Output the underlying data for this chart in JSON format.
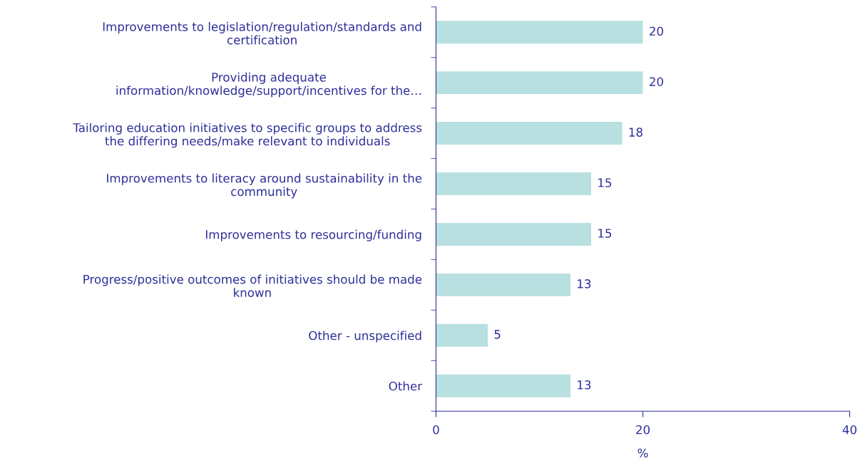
{
  "chart_data": {
    "type": "bar",
    "orientation": "horizontal",
    "xlabel": "%",
    "categories": [
      "Improvements to legislation/regulation/standards and\ncertification",
      "Providing adequate\ninformation/knowledge/support/incentives for the…",
      "Tailoring education initiatives to specific groups to address\nthe differing needs/make relevant to individuals",
      "Improvements to literacy around sustainability in the\ncommunity",
      "Improvements to resourcing/funding",
      "Progress/positive outcomes of initiatives should be made\nknown",
      "Other - unspecified",
      "Other"
    ],
    "values": [
      20,
      20,
      18,
      15,
      15,
      13,
      5,
      13
    ],
    "color": "#b8e0e0",
    "xlim": [
      0,
      40
    ],
    "xticks": [
      0,
      20,
      40
    ],
    "data_labels": true,
    "grid": false,
    "legend": false
  }
}
